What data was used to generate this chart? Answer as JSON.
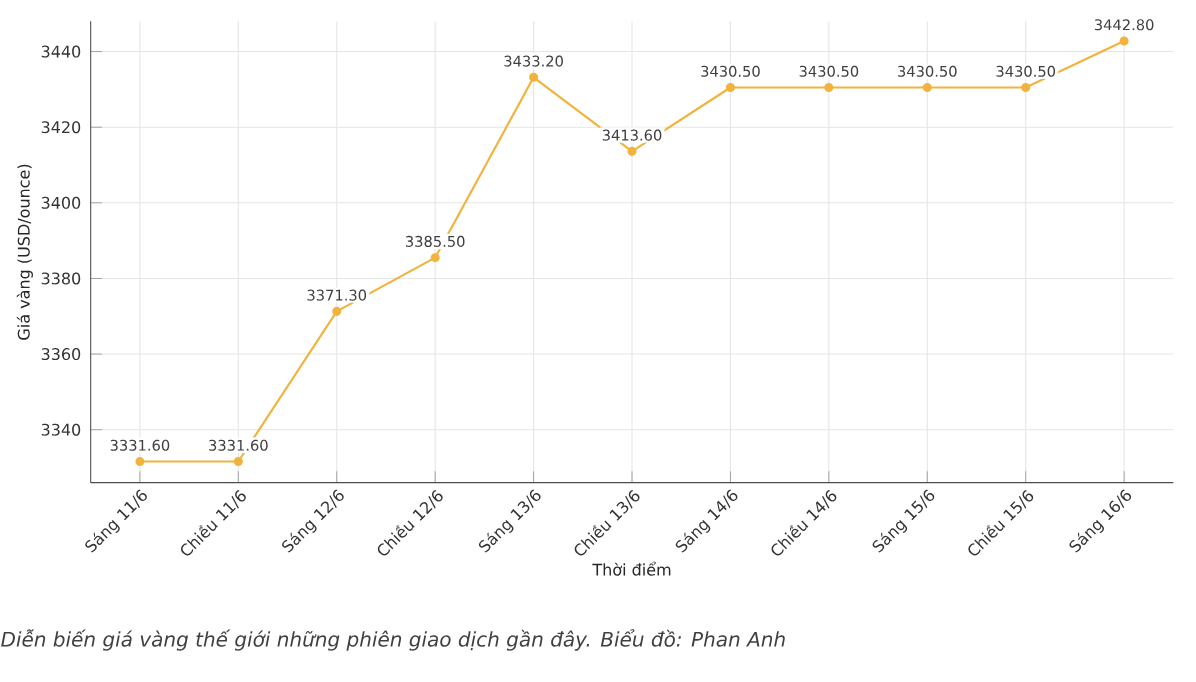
{
  "chart_data": {
    "type": "line",
    "xlabel": "Thời điểm",
    "ylabel": "Giá vàng (USD/ounce)",
    "categories": [
      "Sáng 11/6",
      "Chiều 11/6",
      "Sáng 12/6",
      "Chiều 12/6",
      "Sáng 13/6",
      "Chiều 13/6",
      "Sáng 14/6",
      "Chiều 14/6",
      "Sáng 15/6",
      "Chiều 15/6",
      "Sáng 16/6"
    ],
    "series": [
      {
        "color": "#f2b33d",
        "values": [
          3331.6,
          3331.6,
          3371.3,
          3385.5,
          3433.2,
          3413.6,
          3430.5,
          3430.5,
          3430.5,
          3430.5,
          3442.8
        ],
        "value_labels": [
          "3331.60",
          "3331.60",
          "3371.30",
          "3385.50",
          "3433.20",
          "3413.60",
          "3430.50",
          "3430.50",
          "3430.50",
          "3430.50",
          "3442.80"
        ]
      }
    ],
    "ylim": [
      3326,
      3448
    ],
    "yticks": [
      3340,
      3360,
      3380,
      3400,
      3420,
      3440
    ],
    "grid": true,
    "marker": "circle",
    "line_style": "solid",
    "annotations": [
      "Diễn biến giá vàng thế giới những phiên giao dịch gần đây. Biểu đồ: Phan Anh"
    ]
  }
}
